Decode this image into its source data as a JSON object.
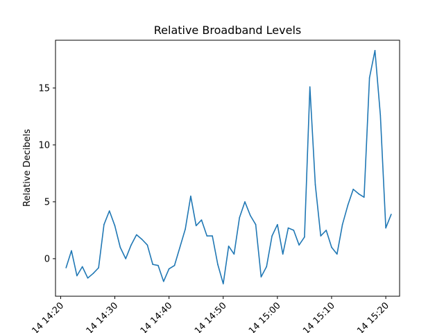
{
  "chart_data": {
    "type": "line",
    "title": "Relative Broadband Levels",
    "xlabel": "",
    "ylabel": "Relative Decibels",
    "x_tick_labels": [
      "14 14:20",
      "14 14:30",
      "14 14:40",
      "14 14:50",
      "14 15:00",
      "14 15:10",
      "14 15:20"
    ],
    "y_ticks": [
      0,
      5,
      10,
      15
    ],
    "ylim": [
      -3.3,
      19.2
    ],
    "grid": false,
    "series": [
      {
        "color": "#1f77b4",
        "x": [
          "14:21",
          "14:22",
          "14:23",
          "14:24",
          "14:25",
          "14:26",
          "14:27",
          "14:28",
          "14:29",
          "14:30",
          "14:31",
          "14:32",
          "14:33",
          "14:34",
          "14:35",
          "14:36",
          "14:37",
          "14:38",
          "14:39",
          "14:40",
          "14:41",
          "14:42",
          "14:43",
          "14:44",
          "14:45",
          "14:46",
          "14:47",
          "14:48",
          "14:49",
          "14:50",
          "14:51",
          "14:52",
          "14:53",
          "14:54",
          "14:55",
          "14:56",
          "14:57",
          "14:58",
          "14:59",
          "15:00",
          "15:01",
          "15:02",
          "15:03",
          "15:04",
          "15:05",
          "15:06",
          "15:07",
          "15:08",
          "15:09",
          "15:10",
          "15:11",
          "15:12",
          "15:13",
          "15:14",
          "15:15",
          "15:16",
          "15:17",
          "15:18",
          "15:19",
          "15:20",
          "15:21"
        ],
        "values": [
          -0.8,
          0.7,
          -1.5,
          -0.7,
          -1.7,
          -1.3,
          -0.8,
          3.0,
          4.2,
          2.9,
          1.0,
          0.0,
          1.2,
          2.1,
          1.7,
          1.2,
          -0.5,
          -0.6,
          -2.0,
          -0.9,
          -0.6,
          1.0,
          2.6,
          5.5,
          2.9,
          3.4,
          2.0,
          2.0,
          -0.5,
          -2.2,
          1.1,
          0.4,
          3.6,
          5.0,
          3.8,
          3.0,
          -1.6,
          -0.7,
          2.0,
          3.0,
          0.4,
          2.7,
          2.5,
          1.2,
          1.9,
          15.1,
          6.5,
          2.0,
          2.5,
          1.0,
          0.4,
          3.0,
          4.7,
          6.1,
          5.7,
          5.4,
          15.9,
          18.3,
          12.6,
          2.7,
          3.9
        ]
      }
    ]
  }
}
